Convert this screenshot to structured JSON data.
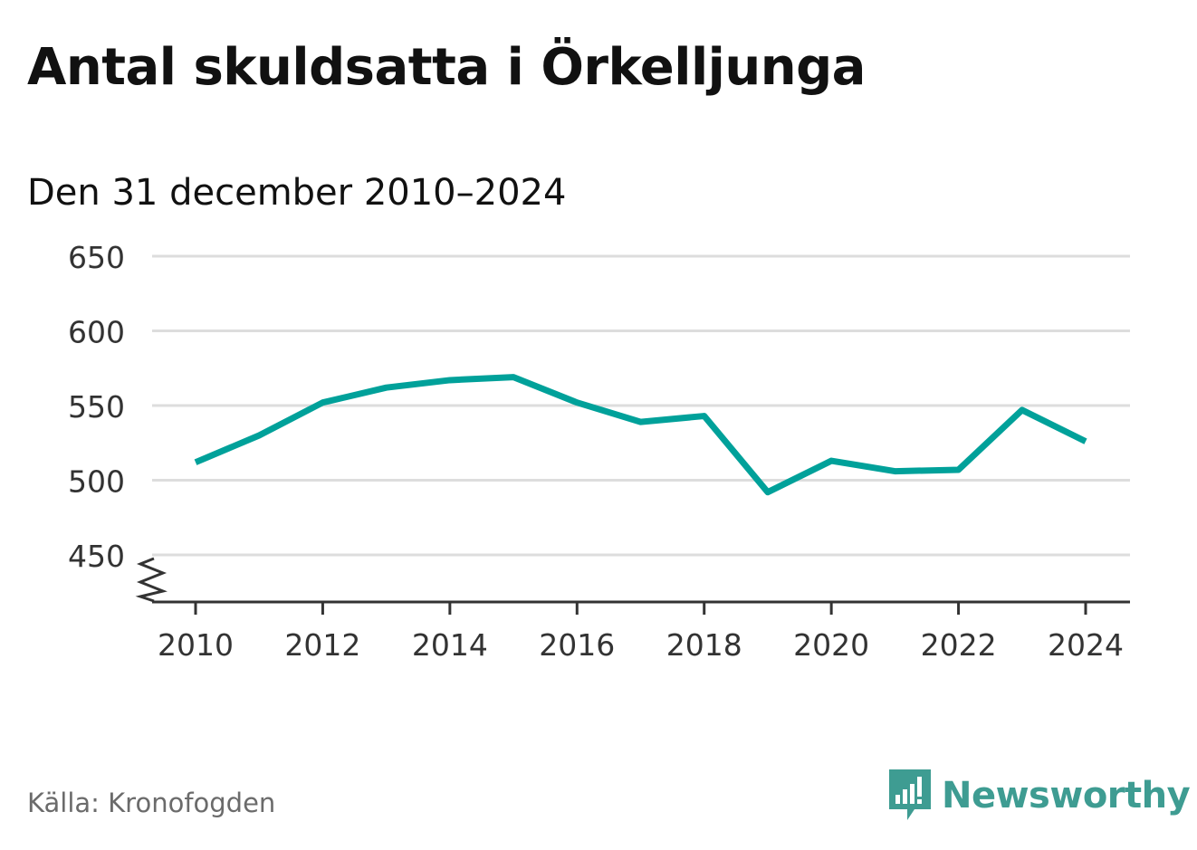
{
  "chart_data": {
    "type": "line",
    "title": "Antal skuldsatta i Örkelljunga",
    "subtitle": "Den 31 december 2010–2024",
    "x": [
      2010,
      2011,
      2012,
      2013,
      2014,
      2015,
      2016,
      2017,
      2018,
      2019,
      2020,
      2021,
      2022,
      2023,
      2024
    ],
    "series": [
      {
        "values": [
          512,
          530,
          552,
          562,
          567,
          569,
          552,
          539,
          543,
          492,
          513,
          506,
          507,
          547,
          526
        ]
      }
    ],
    "x_ticks": [
      "2010",
      "2012",
      "2014",
      "2016",
      "2018",
      "2020",
      "2022",
      "2024"
    ],
    "y_ticks": [
      "450",
      "500",
      "550",
      "600",
      "650"
    ],
    "ylim": [
      450,
      650
    ],
    "y_axis_break": true,
    "grid": "horizontal",
    "line_color": "#00a19a"
  },
  "footer": {
    "source": "Källa: Kronofogden",
    "brand": "Newsworthy"
  },
  "colors": {
    "brand": "#3e9c92",
    "grid": "#dddddd",
    "axis": "#333333"
  }
}
